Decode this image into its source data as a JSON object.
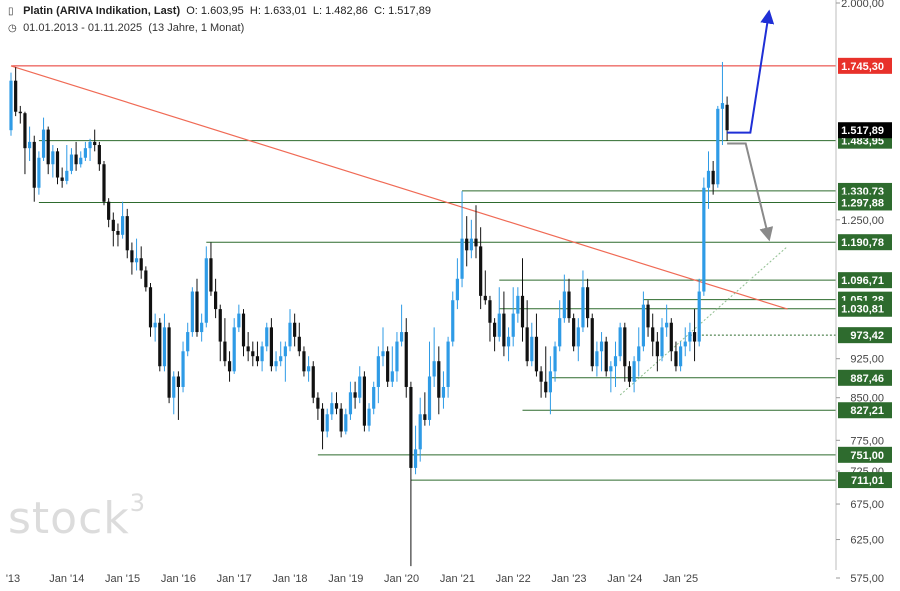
{
  "header": {
    "title": "Platin (ARIVA Indikation, Last)",
    "open": "O: 1.603,95",
    "high": "H: 1.633,01",
    "low": "L: 1.482,86",
    "close": "C: 1.517,89",
    "range": "01.01.2013 - 01.11.2025",
    "duration": "(13 Jahre, 1 Monat)"
  },
  "watermark": {
    "text": "stock",
    "sup": "3"
  },
  "colors": {
    "up": "#2e9be6",
    "down": "#111111",
    "support": "#2e6b2e",
    "resistance": "#e8312a",
    "trend": "#f06a55",
    "projection_up": "#1f2fd6",
    "projection_down": "#8a8a8a",
    "uptrend": "#8fbf8f"
  },
  "chart_data": {
    "type": "candlestick",
    "title": "Platin (ARIVA Indikation, Last)",
    "interval": "monthly",
    "x_labels": [
      "'13",
      "Jan '14",
      "Jan '15",
      "Jan '16",
      "Jan '17",
      "Jan '18",
      "Jan '19",
      "Jan '20",
      "Jan '21",
      "Jan '22",
      "Jan '23",
      "Jan '24",
      "Jan '25"
    ],
    "y_ticks": [
      {
        "value": 2000,
        "label": "2.000,00"
      },
      {
        "value": 1250,
        "label": "1.250,00"
      },
      {
        "value": 925,
        "label": "925,00"
      },
      {
        "value": 850,
        "label": "850,00"
      },
      {
        "value": 775,
        "label": "775,00"
      },
      {
        "value": 725,
        "label": "725,00"
      },
      {
        "value": 675,
        "label": "675,00"
      },
      {
        "value": 625,
        "label": "625,00"
      },
      {
        "value": 575,
        "label": "575,00"
      }
    ],
    "y_scale": "log",
    "ylim": [
      575,
      2000
    ],
    "last_price": {
      "value": 1517.89,
      "label": "1.517,89"
    },
    "resistance": {
      "value": 1745.3,
      "label": "1.745,30"
    },
    "levels": [
      {
        "value": 1483.95,
        "label": "1.483,95"
      },
      {
        "value": 1330.73,
        "label": "1.330,73"
      },
      {
        "value": 1297.88,
        "label": "1.297,88"
      },
      {
        "value": 1190.78,
        "label": "1.190,78"
      },
      {
        "value": 1096.71,
        "label": "1.096,71"
      },
      {
        "value": 1051.28,
        "label": "1.051,28"
      },
      {
        "value": 1030.81,
        "label": "1.030,81"
      },
      {
        "value": 973.42,
        "label": "973,42",
        "style": "dotted"
      },
      {
        "value": 887.46,
        "label": "887,46"
      },
      {
        "value": 827.21,
        "label": "827,21"
      },
      {
        "value": 751.0,
        "label": "751,00"
      },
      {
        "value": 711.01,
        "label": "711,01"
      }
    ],
    "candles": [
      [
        "2013-01",
        1518,
        1720,
        1500,
        1690
      ],
      [
        "2013-02",
        1690,
        1740,
        1565,
        1580
      ],
      [
        "2013-03",
        1580,
        1600,
        1540,
        1575
      ],
      [
        "2013-04",
        1575,
        1580,
        1380,
        1460
      ],
      [
        "2013-05",
        1460,
        1530,
        1420,
        1480
      ],
      [
        "2013-06",
        1480,
        1500,
        1300,
        1340
      ],
      [
        "2013-07",
        1340,
        1450,
        1320,
        1430
      ],
      [
        "2013-08",
        1430,
        1560,
        1420,
        1520
      ],
      [
        "2013-09",
        1520,
        1530,
        1380,
        1410
      ],
      [
        "2013-10",
        1410,
        1470,
        1370,
        1450
      ],
      [
        "2013-11",
        1450,
        1460,
        1350,
        1370
      ],
      [
        "2013-12",
        1370,
        1400,
        1340,
        1360
      ],
      [
        "2014-01",
        1360,
        1470,
        1350,
        1390
      ],
      [
        "2014-02",
        1390,
        1460,
        1380,
        1440
      ],
      [
        "2014-03",
        1440,
        1480,
        1390,
        1410
      ],
      [
        "2014-04",
        1410,
        1450,
        1400,
        1430
      ],
      [
        "2014-05",
        1430,
        1480,
        1420,
        1460
      ],
      [
        "2014-06",
        1460,
        1490,
        1420,
        1480
      ],
      [
        "2014-07",
        1480,
        1520,
        1450,
        1470
      ],
      [
        "2014-08",
        1470,
        1480,
        1390,
        1410
      ],
      [
        "2014-09",
        1410,
        1420,
        1290,
        1300
      ],
      [
        "2014-10",
        1300,
        1310,
        1230,
        1250
      ],
      [
        "2014-11",
        1250,
        1270,
        1180,
        1220
      ],
      [
        "2014-12",
        1220,
        1240,
        1180,
        1210
      ],
      [
        "2015-01",
        1210,
        1300,
        1200,
        1260
      ],
      [
        "2015-02",
        1260,
        1280,
        1150,
        1170
      ],
      [
        "2015-03",
        1170,
        1190,
        1110,
        1140
      ],
      [
        "2015-04",
        1140,
        1200,
        1120,
        1150
      ],
      [
        "2015-05",
        1150,
        1180,
        1100,
        1120
      ],
      [
        "2015-06",
        1120,
        1130,
        1070,
        1080
      ],
      [
        "2015-07",
        1080,
        1090,
        970,
        990
      ],
      [
        "2015-08",
        990,
        1020,
        960,
        1000
      ],
      [
        "2015-09",
        1000,
        1010,
        900,
        910
      ],
      [
        "2015-10",
        910,
        1020,
        900,
        990
      ],
      [
        "2015-11",
        990,
        1000,
        840,
        850
      ],
      [
        "2015-12",
        850,
        900,
        820,
        890
      ],
      [
        "2016-01",
        890,
        900,
        810,
        870
      ],
      [
        "2016-02",
        870,
        960,
        860,
        940
      ],
      [
        "2016-03",
        940,
        1000,
        930,
        980
      ],
      [
        "2016-04",
        980,
        1080,
        970,
        1070
      ],
      [
        "2016-05",
        1070,
        1100,
        970,
        980
      ],
      [
        "2016-06",
        980,
        1020,
        960,
        1000
      ],
      [
        "2016-07",
        1000,
        1180,
        990,
        1150
      ],
      [
        "2016-08",
        1150,
        1190,
        1060,
        1070
      ],
      [
        "2016-09",
        1070,
        1100,
        1010,
        1030
      ],
      [
        "2016-10",
        1030,
        1040,
        920,
        960
      ],
      [
        "2016-11",
        960,
        1010,
        910,
        920
      ],
      [
        "2016-12",
        920,
        940,
        880,
        900
      ],
      [
        "2017-01",
        900,
        1010,
        895,
        990
      ],
      [
        "2017-02",
        990,
        1040,
        980,
        1020
      ],
      [
        "2017-03",
        1020,
        1030,
        930,
        950
      ],
      [
        "2017-04",
        950,
        980,
        920,
        940
      ],
      [
        "2017-05",
        940,
        960,
        910,
        930
      ],
      [
        "2017-06",
        930,
        960,
        910,
        920
      ],
      [
        "2017-07",
        920,
        960,
        900,
        950
      ],
      [
        "2017-08",
        950,
        1000,
        940,
        990
      ],
      [
        "2017-09",
        990,
        1010,
        900,
        910
      ],
      [
        "2017-10",
        910,
        940,
        900,
        920
      ],
      [
        "2017-11",
        920,
        960,
        910,
        930
      ],
      [
        "2017-12",
        930,
        960,
        880,
        950
      ],
      [
        "2018-01",
        950,
        1030,
        940,
        1000
      ],
      [
        "2018-02",
        1000,
        1020,
        950,
        970
      ],
      [
        "2018-03",
        970,
        1000,
        930,
        940
      ],
      [
        "2018-04",
        940,
        950,
        890,
        900
      ],
      [
        "2018-05",
        900,
        930,
        880,
        910
      ],
      [
        "2018-06",
        910,
        920,
        840,
        850
      ],
      [
        "2018-07",
        850,
        860,
        810,
        830
      ],
      [
        "2018-08",
        830,
        840,
        760,
        790
      ],
      [
        "2018-09",
        790,
        830,
        780,
        820
      ],
      [
        "2018-10",
        820,
        860,
        810,
        840
      ],
      [
        "2018-11",
        840,
        860,
        820,
        830
      ],
      [
        "2018-12",
        830,
        840,
        780,
        790
      ],
      [
        "2019-01",
        790,
        830,
        785,
        820
      ],
      [
        "2019-02",
        820,
        880,
        810,
        860
      ],
      [
        "2019-03",
        860,
        880,
        830,
        850
      ],
      [
        "2019-04",
        850,
        910,
        840,
        890
      ],
      [
        "2019-05",
        890,
        900,
        790,
        800
      ],
      [
        "2019-06",
        800,
        840,
        790,
        830
      ],
      [
        "2019-07",
        830,
        880,
        820,
        870
      ],
      [
        "2019-08",
        870,
        950,
        840,
        930
      ],
      [
        "2019-09",
        930,
        990,
        910,
        940
      ],
      [
        "2019-10",
        940,
        950,
        870,
        880
      ],
      [
        "2019-11",
        880,
        950,
        870,
        900
      ],
      [
        "2019-12",
        900,
        980,
        880,
        960
      ],
      [
        "2020-01",
        960,
        1040,
        950,
        980
      ],
      [
        "2020-02",
        980,
        1010,
        850,
        870
      ],
      [
        "2020-03",
        870,
        880,
        590,
        730
      ],
      [
        "2020-04",
        730,
        800,
        720,
        760
      ],
      [
        "2020-05",
        760,
        850,
        740,
        820
      ],
      [
        "2020-06",
        820,
        860,
        800,
        810
      ],
      [
        "2020-07",
        810,
        960,
        800,
        890
      ],
      [
        "2020-08",
        890,
        990,
        870,
        920
      ],
      [
        "2020-09",
        920,
        950,
        820,
        850
      ],
      [
        "2020-10",
        850,
        900,
        830,
        870
      ],
      [
        "2020-11",
        870,
        970,
        850,
        960
      ],
      [
        "2020-12",
        960,
        1070,
        950,
        1050
      ],
      [
        "2021-01",
        1050,
        1150,
        1030,
        1100
      ],
      [
        "2021-02",
        1100,
        1330,
        1080,
        1200
      ],
      [
        "2021-03",
        1200,
        1260,
        1130,
        1170
      ],
      [
        "2021-04",
        1170,
        1250,
        1150,
        1200
      ],
      [
        "2021-05",
        1200,
        1290,
        1150,
        1180
      ],
      [
        "2021-06",
        1180,
        1230,
        1030,
        1060
      ],
      [
        "2021-07",
        1060,
        1120,
        1040,
        1050
      ],
      [
        "2021-08",
        1050,
        1060,
        960,
        1000
      ],
      [
        "2021-09",
        1000,
        1010,
        940,
        970
      ],
      [
        "2021-10",
        970,
        1080,
        960,
        1020
      ],
      [
        "2021-11",
        1020,
        1070,
        930,
        950
      ],
      [
        "2021-12",
        950,
        990,
        920,
        970
      ],
      [
        "2022-01",
        970,
        1080,
        950,
        1020
      ],
      [
        "2022-02",
        1020,
        1080,
        1000,
        1060
      ],
      [
        "2022-03",
        1060,
        1150,
        960,
        990
      ],
      [
        "2022-04",
        990,
        1050,
        910,
        920
      ],
      [
        "2022-05",
        920,
        1000,
        910,
        970
      ],
      [
        "2022-06",
        970,
        1020,
        890,
        900
      ],
      [
        "2022-07",
        900,
        910,
        850,
        880
      ],
      [
        "2022-08",
        880,
        950,
        850,
        860
      ],
      [
        "2022-09",
        860,
        930,
        820,
        900
      ],
      [
        "2022-10",
        900,
        960,
        880,
        950
      ],
      [
        "2022-11",
        950,
        1050,
        940,
        1010
      ],
      [
        "2022-12",
        1010,
        1110,
        1000,
        1070
      ],
      [
        "2023-01",
        1070,
        1100,
        1000,
        1010
      ],
      [
        "2023-02",
        1010,
        1020,
        940,
        950
      ],
      [
        "2023-03",
        950,
        1010,
        920,
        990
      ],
      [
        "2023-04",
        990,
        1120,
        980,
        1080
      ],
      [
        "2023-05",
        1080,
        1100,
        990,
        1010
      ],
      [
        "2023-06",
        1010,
        1020,
        900,
        910
      ],
      [
        "2023-07",
        910,
        960,
        890,
        940
      ],
      [
        "2023-08",
        940,
        980,
        900,
        960
      ],
      [
        "2023-09",
        960,
        970,
        890,
        900
      ],
      [
        "2023-10",
        900,
        920,
        860,
        910
      ],
      [
        "2023-11",
        910,
        960,
        870,
        930
      ],
      [
        "2023-12",
        930,
        1000,
        920,
        990
      ],
      [
        "2024-01",
        990,
        1000,
        880,
        910
      ],
      [
        "2024-02",
        910,
        920,
        870,
        880
      ],
      [
        "2024-03",
        880,
        930,
        860,
        920
      ],
      [
        "2024-04",
        920,
        990,
        890,
        950
      ],
      [
        "2024-05",
        950,
        1070,
        940,
        1040
      ],
      [
        "2024-06",
        1040,
        1050,
        970,
        990
      ],
      [
        "2024-07",
        990,
        1020,
        930,
        960
      ],
      [
        "2024-08",
        960,
        980,
        900,
        930
      ],
      [
        "2024-09",
        930,
        1010,
        920,
        990
      ],
      [
        "2024-10",
        990,
        1040,
        970,
        1000
      ],
      [
        "2024-11",
        1000,
        1010,
        920,
        940
      ],
      [
        "2024-12",
        940,
        960,
        900,
        910
      ],
      [
        "2025-01",
        910,
        960,
        900,
        950
      ],
      [
        "2025-02",
        950,
        990,
        930,
        960
      ],
      [
        "2025-03",
        960,
        1000,
        940,
        980
      ],
      [
        "2025-04",
        980,
        1030,
        920,
        960
      ],
      [
        "2025-05",
        960,
        1100,
        950,
        1070
      ],
      [
        "2025-06",
        1070,
        1370,
        1060,
        1340
      ],
      [
        "2025-07",
        1340,
        1450,
        1280,
        1390
      ],
      [
        "2025-08",
        1390,
        1420,
        1320,
        1350
      ],
      [
        "2025-09",
        1350,
        1600,
        1340,
        1590
      ],
      [
        "2025-10",
        1590,
        1760,
        1470,
        1610
      ],
      [
        "2025-11",
        1604,
        1633,
        1483,
        1518
      ]
    ],
    "trendlines": [
      {
        "name": "resistance-trend",
        "from": [
          "2013-01",
          1745
        ],
        "to": [
          "2026-12",
          1030
        ],
        "color": "#f06a55"
      },
      {
        "name": "uptrend",
        "from": [
          "2023-12",
          855
        ],
        "to": [
          "2026-12",
          1180
        ],
        "color": "#8fbf8f",
        "style": "dotted"
      }
    ],
    "projections": [
      {
        "name": "bullish-projection",
        "points": [
          [
            "2025-11",
            1510
          ],
          [
            "2026-04",
            1510
          ],
          [
            "2026-08",
            1960
          ]
        ],
        "color": "#1f2fd6"
      },
      {
        "name": "bearish-projection",
        "points": [
          [
            "2025-11",
            1475
          ],
          [
            "2026-03",
            1475
          ],
          [
            "2026-08",
            1200
          ]
        ],
        "color": "#8a8a8a"
      }
    ]
  }
}
